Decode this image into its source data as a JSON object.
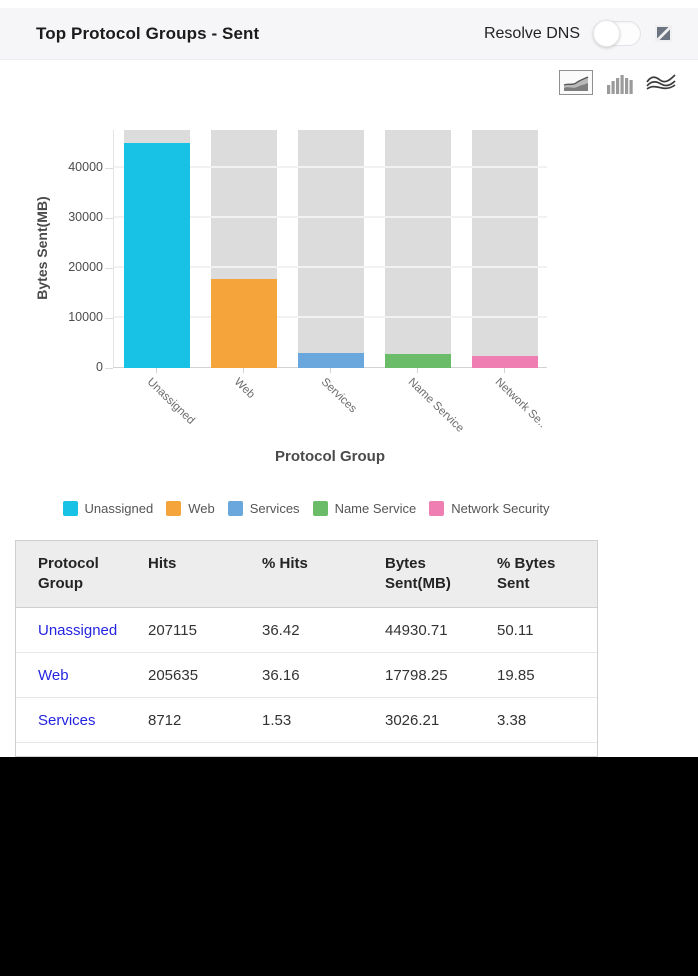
{
  "header": {
    "title": "Top Protocol Groups - Sent",
    "resolve_dns_label": "Resolve DNS",
    "resolve_dns_state": "off"
  },
  "toolbar": {
    "icons": [
      {
        "name": "area-chart",
        "selected": true
      },
      {
        "name": "bar-chart",
        "selected": false
      },
      {
        "name": "stream-chart",
        "selected": false
      }
    ]
  },
  "chart_data": {
    "type": "bar",
    "title": "",
    "xlabel": "Protocol Group",
    "ylabel": "Bytes Sent(MB)",
    "categories": [
      "Unassigned",
      "Web",
      "Services",
      "Name Service",
      "Network Security"
    ],
    "xtick_labels": [
      "Unassigned",
      "Web",
      "Services",
      "Name Service",
      "Network Se.."
    ],
    "values": [
      44930.71,
      17798.25,
      3026.21,
      2800,
      2400
    ],
    "colors": [
      "#17c2e5",
      "#f4a43b",
      "#6aa7dc",
      "#6abc68",
      "#ef7fb3"
    ],
    "track_color": "#dcdcdc",
    "ylim": [
      0,
      47600
    ],
    "yticks": [
      0,
      10000,
      20000,
      30000,
      40000
    ],
    "grid": true,
    "legend_position": "bottom",
    "legend": [
      {
        "label": "Unassigned",
        "color": "#17c2e5"
      },
      {
        "label": "Web",
        "color": "#f4a43b"
      },
      {
        "label": "Services",
        "color": "#6aa7dc"
      },
      {
        "label": "Name Service",
        "color": "#6abc68"
      },
      {
        "label": "Network Security",
        "color": "#ef7fb3"
      }
    ]
  },
  "table": {
    "columns": [
      "Protocol Group",
      "Hits",
      "% Hits",
      "Bytes Sent(MB)",
      "% Bytes Sent"
    ],
    "rows": [
      {
        "protocol_group": "Unassigned",
        "hits": "207115",
        "pct_hits": "36.42",
        "bytes_sent_mb": "44930.71",
        "pct_bytes_sent": "50.11"
      },
      {
        "protocol_group": "Web",
        "hits": "205635",
        "pct_hits": "36.16",
        "bytes_sent_mb": "17798.25",
        "pct_bytes_sent": "19.85"
      },
      {
        "protocol_group": "Services",
        "hits": "8712",
        "pct_hits": "1.53",
        "bytes_sent_mb": "3026.21",
        "pct_bytes_sent": "3.38"
      }
    ]
  }
}
